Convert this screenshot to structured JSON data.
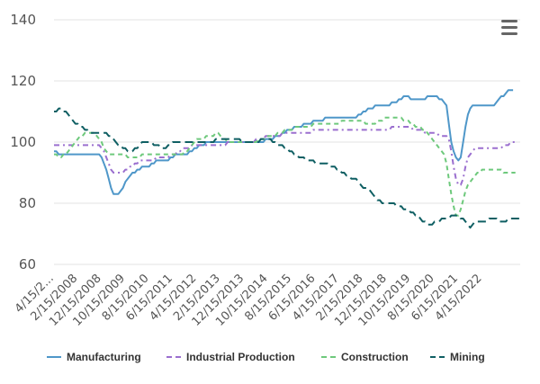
{
  "menu": {
    "icon": "hamburger-menu-icon"
  },
  "chart_data": {
    "type": "line",
    "title": "",
    "xlabel": "",
    "ylabel": "",
    "ylim": [
      60,
      140
    ],
    "yticks": [
      60,
      80,
      100,
      120,
      140
    ],
    "grid": true,
    "legend_position": "bottom",
    "x_start": "2006-04",
    "x_step": "month",
    "xtick_labels": [
      "4/15/2...",
      "2/15/2008",
      "12/15/2008",
      "10/15/2009",
      "8/15/2010",
      "6/15/2011",
      "4/15/2012",
      "2/15/2013",
      "12/15/2013",
      "10/15/2014",
      "8/15/2015",
      "6/15/2016",
      "4/15/2017",
      "2/15/2018",
      "12/15/2018",
      "10/15/2019",
      "8/15/2020",
      "6/15/2021",
      "4/15/2022"
    ],
    "series": [
      {
        "name": "Manufacturing",
        "color": "#4f97c9",
        "dash": "solid",
        "values": [
          97,
          97,
          96,
          96,
          96,
          96,
          96,
          96,
          96,
          96,
          96,
          96,
          96,
          96,
          96,
          96,
          96,
          96,
          96,
          96,
          95,
          93,
          91,
          88,
          85,
          83,
          83,
          83,
          84,
          85,
          87,
          88,
          89,
          90,
          90,
          91,
          91,
          92,
          92,
          92,
          92,
          93,
          93,
          94,
          94,
          94,
          94,
          94,
          94,
          95,
          95,
          96,
          96,
          96,
          96,
          96,
          96,
          97,
          97,
          98,
          98,
          99,
          99,
          99,
          100,
          100,
          100,
          100,
          100,
          100,
          100,
          100,
          100,
          100,
          100,
          100,
          100,
          100,
          100,
          100,
          100,
          100,
          100,
          100,
          100,
          100,
          100,
          100,
          100,
          101,
          101,
          101,
          101,
          102,
          102,
          102,
          103,
          103,
          104,
          104,
          104,
          105,
          105,
          105,
          105,
          106,
          106,
          106,
          106,
          107,
          107,
          107,
          107,
          107,
          108,
          108,
          108,
          108,
          108,
          108,
          108,
          108,
          108,
          108,
          108,
          108,
          108,
          108,
          109,
          109,
          110,
          110,
          111,
          111,
          111,
          112,
          112,
          112,
          112,
          112,
          112,
          112,
          113,
          113,
          113,
          114,
          114,
          115,
          115,
          115,
          114,
          114,
          114,
          114,
          114,
          114,
          114,
          115,
          115,
          115,
          115,
          115,
          114,
          114,
          113,
          112,
          106,
          100,
          97,
          95,
          94,
          95,
          100,
          105,
          109,
          111,
          112,
          112,
          112,
          112,
          112,
          112,
          112,
          112,
          112,
          112,
          113,
          114,
          115,
          115,
          116,
          117,
          117,
          117
        ]
      },
      {
        "name": "Industrial Production",
        "color": "#9b6fcf",
        "dash": "dashdot",
        "values": [
          99,
          99,
          99,
          99,
          99,
          99,
          99,
          99,
          99,
          99,
          99,
          99,
          99,
          99,
          99,
          99,
          99,
          99,
          99,
          99,
          98,
          97,
          95,
          93,
          91,
          90,
          90,
          90,
          90,
          90,
          91,
          91,
          92,
          92,
          93,
          93,
          94,
          94,
          94,
          94,
          94,
          94,
          94,
          95,
          95,
          95,
          95,
          95,
          95,
          96,
          96,
          96,
          97,
          97,
          98,
          98,
          98,
          98,
          99,
          99,
          99,
          99,
          99,
          99,
          99,
          99,
          99,
          99,
          99,
          99,
          99,
          99,
          99,
          100,
          100,
          100,
          100,
          100,
          100,
          100,
          100,
          100,
          100,
          100,
          100,
          101,
          101,
          101,
          101,
          102,
          102,
          102,
          102,
          102,
          102,
          102,
          103,
          103,
          103,
          103,
          103,
          103,
          103,
          103,
          103,
          103,
          103,
          103,
          103,
          104,
          104,
          104,
          104,
          104,
          104,
          104,
          104,
          104,
          104,
          104,
          104,
          104,
          104,
          104,
          104,
          104,
          104,
          104,
          104,
          104,
          104,
          104,
          104,
          104,
          104,
          104,
          104,
          104,
          104,
          104,
          104,
          104,
          105,
          105,
          105,
          105,
          105,
          105,
          105,
          105,
          105,
          104,
          104,
          104,
          104,
          104,
          103,
          103,
          103,
          103,
          103,
          103,
          102,
          102,
          102,
          102,
          101,
          97,
          92,
          88,
          86,
          86,
          88,
          92,
          95,
          96,
          97,
          98,
          98,
          98,
          98,
          98,
          98,
          98,
          98,
          98,
          98,
          98,
          98,
          99,
          99,
          99,
          100,
          100,
          100
        ]
      },
      {
        "name": "Construction",
        "color": "#6ec97c",
        "dash": "dash",
        "values": [
          96,
          96,
          95,
          95,
          96,
          96,
          97,
          98,
          99,
          100,
          101,
          102,
          102,
          103,
          103,
          103,
          103,
          103,
          102,
          101,
          100,
          98,
          97,
          96,
          96,
          96,
          96,
          96,
          96,
          96,
          96,
          95,
          95,
          95,
          95,
          95,
          95,
          96,
          96,
          96,
          96,
          96,
          96,
          96,
          96,
          96,
          96,
          96,
          96,
          96,
          96,
          96,
          96,
          96,
          96,
          97,
          97,
          98,
          99,
          100,
          101,
          101,
          101,
          101,
          102,
          102,
          102,
          102,
          103,
          103,
          102,
          101,
          101,
          100,
          100,
          100,
          100,
          100,
          100,
          100,
          100,
          100,
          100,
          100,
          100,
          100,
          101,
          101,
          101,
          101,
          102,
          102,
          102,
          102,
          103,
          103,
          103,
          104,
          104,
          104,
          104,
          105,
          105,
          105,
          105,
          105,
          105,
          105,
          105,
          106,
          106,
          106,
          106,
          106,
          106,
          106,
          106,
          106,
          106,
          106,
          106,
          107,
          107,
          107,
          107,
          107,
          107,
          107,
          107,
          107,
          107,
          106,
          106,
          106,
          106,
          106,
          107,
          107,
          107,
          108,
          108,
          108,
          108,
          108,
          108,
          108,
          108,
          107,
          107,
          107,
          106,
          106,
          105,
          105,
          105,
          104,
          104,
          103,
          102,
          101,
          100,
          99,
          98,
          97,
          96,
          93,
          88,
          83,
          79,
          76,
          76,
          78,
          81,
          84,
          86,
          87,
          88,
          89,
          90,
          90,
          91,
          91,
          91,
          91,
          91,
          91,
          91,
          91,
          91,
          90,
          90,
          90,
          90,
          90,
          90
        ]
      },
      {
        "name": "Mining",
        "color": "#0f5f63",
        "dash": "longdash",
        "values": [
          110,
          110,
          111,
          111,
          110,
          110,
          109,
          108,
          107,
          106,
          106,
          105,
          105,
          104,
          104,
          103,
          103,
          103,
          103,
          103,
          103,
          103,
          103,
          102,
          102,
          101,
          100,
          99,
          99,
          98,
          98,
          97,
          97,
          97,
          98,
          98,
          99,
          100,
          100,
          100,
          100,
          100,
          99,
          99,
          99,
          98,
          98,
          98,
          99,
          99,
          100,
          100,
          100,
          100,
          100,
          100,
          100,
          100,
          100,
          100,
          100,
          100,
          100,
          100,
          100,
          100,
          100,
          100,
          101,
          101,
          101,
          101,
          101,
          101,
          101,
          101,
          101,
          101,
          101,
          100,
          100,
          100,
          100,
          100,
          100,
          100,
          100,
          101,
          101,
          101,
          101,
          101,
          100,
          100,
          99,
          99,
          99,
          98,
          98,
          97,
          97,
          96,
          96,
          95,
          95,
          95,
          94,
          94,
          94,
          94,
          93,
          93,
          93,
          93,
          93,
          93,
          92,
          92,
          92,
          91,
          91,
          90,
          90,
          89,
          89,
          88,
          88,
          88,
          87,
          86,
          85,
          85,
          85,
          84,
          83,
          82,
          81,
          81,
          80,
          80,
          80,
          80,
          80,
          80,
          79,
          79,
          79,
          78,
          78,
          78,
          77,
          77,
          76,
          76,
          75,
          74,
          74,
          73,
          73,
          73,
          74,
          74,
          74,
          75,
          75,
          75,
          75,
          76,
          76,
          76,
          76,
          75,
          75,
          74,
          73,
          72,
          73,
          74,
          74,
          74,
          74,
          74,
          74,
          75,
          75,
          75,
          75,
          74,
          74,
          74,
          74,
          75,
          75,
          75,
          75,
          75,
          75
        ]
      }
    ]
  }
}
